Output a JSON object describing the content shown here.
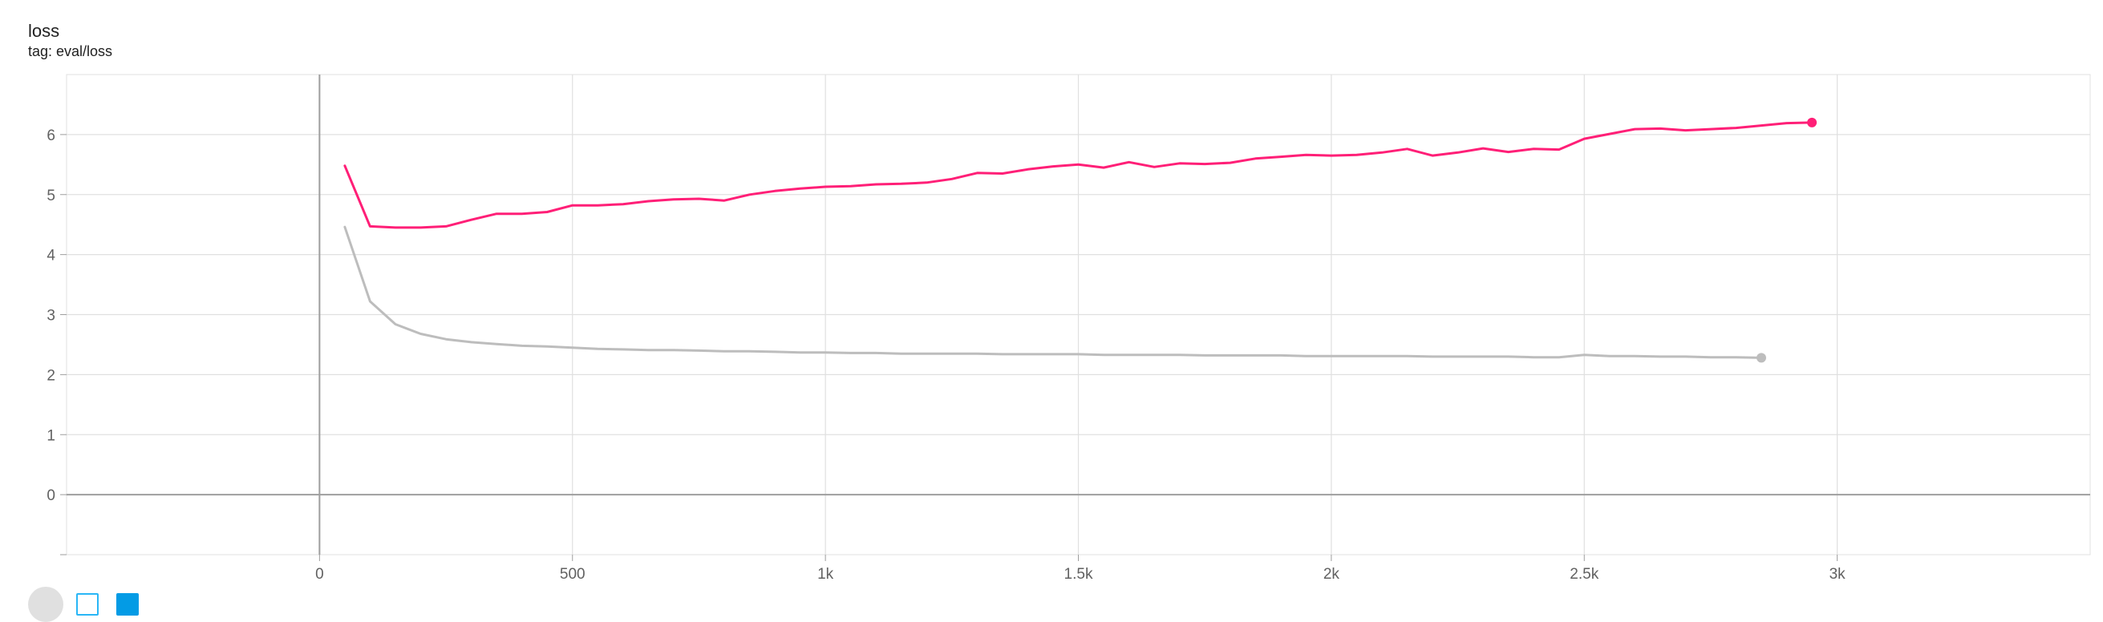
{
  "card": {
    "title": "loss",
    "subtitle": "tag: eval/loss"
  },
  "colors": {
    "series_pink": "#ff1f77",
    "series_gray": "#bdbdbd",
    "grid": "#e0e0e0",
    "axis_zero": "#9e9e9e"
  },
  "chart_data": {
    "type": "line",
    "title": "loss",
    "subtitle": "tag: eval/loss",
    "xlim": [
      -500,
      3500
    ],
    "ylim": [
      -1,
      7
    ],
    "x_ticks": [
      0,
      500,
      1000,
      1500,
      2000,
      2500,
      3000
    ],
    "x_tick_labels": [
      "0",
      "500",
      "1k",
      "1.5k",
      "2k",
      "2.5k",
      "3k"
    ],
    "y_ticks": [
      0,
      1,
      2,
      3,
      4,
      5,
      6
    ],
    "y_tick_labels": [
      "0",
      "1",
      "2",
      "3",
      "4",
      "5",
      "6"
    ],
    "grid": true,
    "legend": "none",
    "series": [
      {
        "color": "#ff1f77",
        "end_marker": true,
        "x": [
          50,
          100,
          150,
          200,
          250,
          300,
          350,
          400,
          450,
          500,
          550,
          600,
          650,
          700,
          750,
          800,
          850,
          900,
          950,
          1000,
          1050,
          1100,
          1150,
          1200,
          1250,
          1300,
          1350,
          1400,
          1450,
          1500,
          1550,
          1600,
          1650,
          1700,
          1750,
          1800,
          1850,
          1900,
          1950,
          2000,
          2050,
          2100,
          2150,
          2200,
          2250,
          2300,
          2350,
          2400,
          2450,
          2500,
          2550,
          2600,
          2650,
          2700,
          2750,
          2800,
          2850,
          2900,
          2950
        ],
        "values": [
          5.48,
          4.47,
          4.45,
          4.45,
          4.47,
          4.58,
          4.68,
          4.68,
          4.71,
          4.82,
          4.82,
          4.84,
          4.89,
          4.92,
          4.93,
          4.9,
          5.0,
          5.06,
          5.1,
          5.13,
          5.14,
          5.17,
          5.18,
          5.2,
          5.26,
          5.36,
          5.35,
          5.42,
          5.47,
          5.5,
          5.45,
          5.54,
          5.46,
          5.52,
          5.51,
          5.53,
          5.6,
          5.63,
          5.66,
          5.65,
          5.66,
          5.7,
          5.76,
          5.65,
          5.7,
          5.77,
          5.71,
          5.76,
          5.75,
          5.93,
          6.01,
          6.09,
          6.1,
          6.07,
          6.09,
          6.11,
          6.15,
          6.19,
          6.2
        ]
      },
      {
        "color": "#bdbdbd",
        "end_marker": true,
        "x": [
          50,
          100,
          150,
          200,
          250,
          300,
          350,
          400,
          450,
          500,
          550,
          600,
          650,
          700,
          750,
          800,
          850,
          900,
          950,
          1000,
          1050,
          1100,
          1150,
          1200,
          1250,
          1300,
          1350,
          1400,
          1450,
          1500,
          1550,
          1600,
          1650,
          1700,
          1750,
          1800,
          1850,
          1900,
          1950,
          2000,
          2050,
          2100,
          2150,
          2200,
          2250,
          2300,
          2350,
          2400,
          2450,
          2500,
          2550,
          2600,
          2650,
          2700,
          2750,
          2800,
          2850
        ],
        "values": [
          4.46,
          3.22,
          2.84,
          2.68,
          2.59,
          2.54,
          2.51,
          2.48,
          2.47,
          2.45,
          2.43,
          2.42,
          2.41,
          2.41,
          2.4,
          2.39,
          2.39,
          2.38,
          2.37,
          2.37,
          2.36,
          2.36,
          2.35,
          2.35,
          2.35,
          2.35,
          2.34,
          2.34,
          2.34,
          2.34,
          2.33,
          2.33,
          2.33,
          2.33,
          2.32,
          2.32,
          2.32,
          2.32,
          2.31,
          2.31,
          2.31,
          2.31,
          2.31,
          2.3,
          2.3,
          2.3,
          2.3,
          2.29,
          2.29,
          2.33,
          2.31,
          2.31,
          2.3,
          2.3,
          2.29,
          2.29,
          2.28
        ]
      }
    ]
  }
}
